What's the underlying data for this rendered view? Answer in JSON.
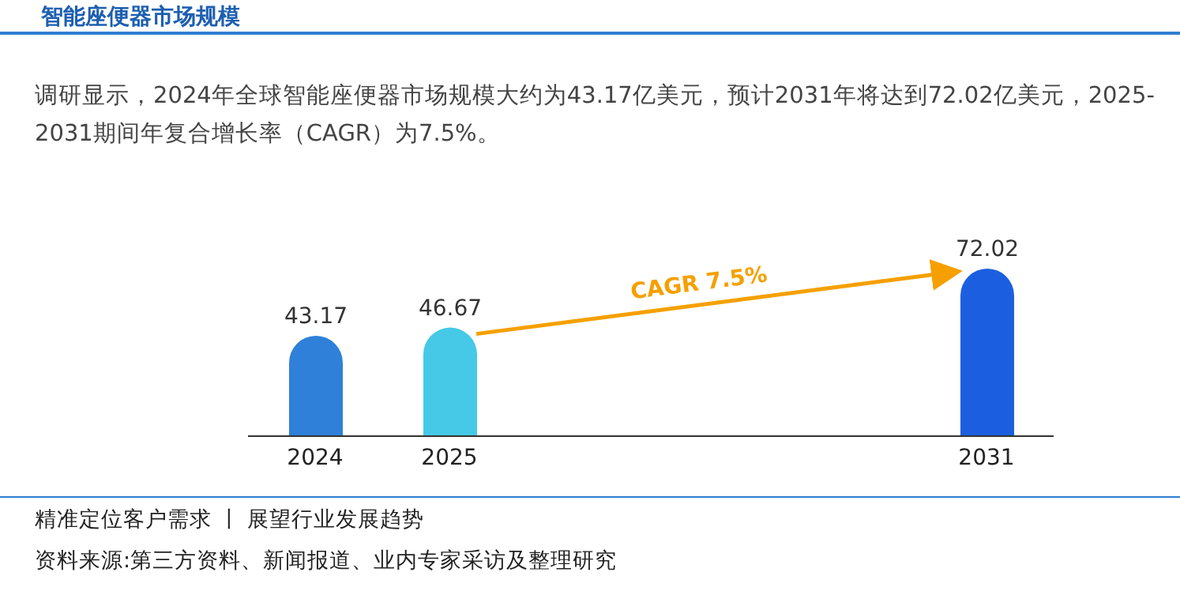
{
  "chart_data": {
    "type": "bar",
    "title": "智能座便器市场规模",
    "subtitle": "调研显示，2024年全球智能座便器市场规模大约为43.17亿美元，预计2031年将达到72.02亿美元，2025-2031期间年复合增长率（CAGR）为7.5%。",
    "categories": [
      "2024",
      "2025",
      null,
      null,
      null,
      "2031"
    ],
    "values": [
      43.17,
      46.67,
      null,
      null,
      null,
      72.02
    ],
    "colors": [
      "#2f80d8",
      "#45c9e6",
      null,
      null,
      null,
      "#1b5fe0"
    ],
    "data_labels": true,
    "tick_labels": "x",
    "legend": false,
    "grid": false,
    "annotations": [
      "CAGR 7.5%",
      "精准定位客户需求 丨 展望行业发展趋势",
      "资料来源:第三方资料、新闻报道、业内专家采访及整理研究"
    ]
  }
}
